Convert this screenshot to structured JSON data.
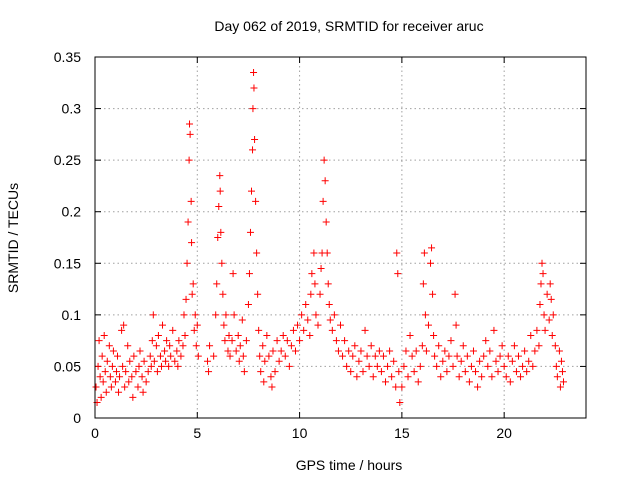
{
  "chart_data": {
    "type": "scatter",
    "title": "Day 062 of 2019, SRMTID for receiver aruc",
    "xlabel": "GPS time / hours",
    "ylabel": "SRMTID / TECUs",
    "xlim": [
      0,
      24
    ],
    "ylim": [
      0,
      0.35
    ],
    "xticks": [
      0,
      5,
      10,
      15,
      20
    ],
    "xtick_labels": [
      "0",
      "5",
      "10",
      "15",
      "20"
    ],
    "yticks": [
      0,
      0.05,
      0.1,
      0.15,
      0.2,
      0.25,
      0.3,
      0.35
    ],
    "ytick_labels": [
      "0",
      "0.05",
      "0.1",
      "0.15",
      "0.2",
      "0.25",
      "0.3",
      "0.35"
    ],
    "grid": true,
    "marker": "+",
    "color": "#ff0000",
    "series": [
      {
        "name": "SRMTID",
        "points": [
          [
            0.05,
            0.03
          ],
          [
            0.1,
            0.015
          ],
          [
            0.15,
            0.05
          ],
          [
            0.2,
            0.075
          ],
          [
            0.25,
            0.04
          ],
          [
            0.3,
            0.02
          ],
          [
            0.35,
            0.06
          ],
          [
            0.4,
            0.035
          ],
          [
            0.45,
            0.08
          ],
          [
            0.5,
            0.045
          ],
          [
            0.55,
            0.025
          ],
          [
            0.6,
            0.055
          ],
          [
            0.7,
            0.07
          ],
          [
            0.75,
            0.04
          ],
          [
            0.8,
            0.03
          ],
          [
            0.85,
            0.05
          ],
          [
            0.9,
            0.065
          ],
          [
            1.0,
            0.035
          ],
          [
            1.05,
            0.045
          ],
          [
            1.1,
            0.06
          ],
          [
            1.15,
            0.025
          ],
          [
            1.2,
            0.04
          ],
          [
            1.3,
            0.085
          ],
          [
            1.35,
            0.05
          ],
          [
            1.4,
            0.09
          ],
          [
            1.45,
            0.03
          ],
          [
            1.5,
            0.045
          ],
          [
            1.6,
            0.07
          ],
          [
            1.65,
            0.035
          ],
          [
            1.7,
            0.055
          ],
          [
            1.8,
            0.04
          ],
          [
            1.85,
            0.02
          ],
          [
            1.9,
            0.06
          ],
          [
            2.0,
            0.045
          ],
          [
            2.1,
            0.03
          ],
          [
            2.15,
            0.05
          ],
          [
            2.2,
            0.065
          ],
          [
            2.3,
            0.04
          ],
          [
            2.35,
            0.025
          ],
          [
            2.4,
            0.055
          ],
          [
            2.5,
            0.035
          ],
          [
            2.6,
            0.045
          ],
          [
            2.7,
            0.06
          ],
          [
            2.75,
            0.05
          ],
          [
            2.8,
            0.075
          ],
          [
            2.85,
            0.1
          ],
          [
            2.9,
            0.055
          ],
          [
            3.0,
            0.07
          ],
          [
            3.05,
            0.045
          ],
          [
            3.1,
            0.08
          ],
          [
            3.2,
            0.06
          ],
          [
            3.25,
            0.05
          ],
          [
            3.3,
            0.09
          ],
          [
            3.4,
            0.065
          ],
          [
            3.45,
            0.055
          ],
          [
            3.5,
            0.075
          ],
          [
            3.6,
            0.05
          ],
          [
            3.65,
            0.07
          ],
          [
            3.7,
            0.06
          ],
          [
            3.8,
            0.085
          ],
          [
            3.9,
            0.055
          ],
          [
            4.0,
            0.065
          ],
          [
            4.05,
            0.05
          ],
          [
            4.1,
            0.075
          ],
          [
            4.2,
            0.06
          ],
          [
            4.3,
            0.07
          ],
          [
            4.35,
            0.1
          ],
          [
            4.4,
            0.08
          ],
          [
            4.45,
            0.115
          ],
          [
            4.5,
            0.15
          ],
          [
            4.55,
            0.19
          ],
          [
            4.6,
            0.25
          ],
          [
            4.62,
            0.285
          ],
          [
            4.65,
            0.275
          ],
          [
            4.7,
            0.21
          ],
          [
            4.72,
            0.17
          ],
          [
            4.75,
            0.12
          ],
          [
            4.8,
            0.13
          ],
          [
            4.85,
            0.085
          ],
          [
            4.9,
            0.1
          ],
          [
            4.95,
            0.07
          ],
          [
            5.0,
            0.09
          ],
          [
            5.05,
            0.06
          ],
          [
            5.5,
            0.055
          ],
          [
            5.55,
            0.045
          ],
          [
            5.6,
            0.07
          ],
          [
            5.8,
            0.06
          ],
          [
            5.9,
            0.1
          ],
          [
            5.95,
            0.13
          ],
          [
            6.0,
            0.175
          ],
          [
            6.05,
            0.205
          ],
          [
            6.1,
            0.235
          ],
          [
            6.12,
            0.22
          ],
          [
            6.15,
            0.18
          ],
          [
            6.2,
            0.15
          ],
          [
            6.25,
            0.12
          ],
          [
            6.3,
            0.09
          ],
          [
            6.35,
            0.075
          ],
          [
            6.4,
            0.1
          ],
          [
            6.5,
            0.065
          ],
          [
            6.55,
            0.08
          ],
          [
            6.6,
            0.06
          ],
          [
            6.7,
            0.075
          ],
          [
            6.75,
            0.14
          ],
          [
            6.8,
            0.1
          ],
          [
            6.9,
            0.065
          ],
          [
            7.0,
            0.08
          ],
          [
            7.05,
            0.055
          ],
          [
            7.1,
            0.07
          ],
          [
            7.2,
            0.095
          ],
          [
            7.25,
            0.06
          ],
          [
            7.3,
            0.045
          ],
          [
            7.4,
            0.075
          ],
          [
            7.5,
            0.11
          ],
          [
            7.55,
            0.14
          ],
          [
            7.6,
            0.18
          ],
          [
            7.65,
            0.22
          ],
          [
            7.7,
            0.26
          ],
          [
            7.72,
            0.3
          ],
          [
            7.75,
            0.335
          ],
          [
            7.77,
            0.32
          ],
          [
            7.8,
            0.27
          ],
          [
            7.85,
            0.21
          ],
          [
            7.9,
            0.16
          ],
          [
            7.95,
            0.12
          ],
          [
            8.0,
            0.085
          ],
          [
            8.05,
            0.06
          ],
          [
            8.1,
            0.045
          ],
          [
            8.2,
            0.07
          ],
          [
            8.25,
            0.035
          ],
          [
            8.3,
            0.055
          ],
          [
            8.4,
            0.08
          ],
          [
            8.5,
            0.06
          ],
          [
            8.6,
            0.04
          ],
          [
            8.65,
            0.03
          ],
          [
            8.7,
            0.065
          ],
          [
            8.8,
            0.045
          ],
          [
            8.9,
            0.075
          ],
          [
            9.0,
            0.055
          ],
          [
            9.1,
            0.065
          ],
          [
            9.2,
            0.08
          ],
          [
            9.3,
            0.06
          ],
          [
            9.4,
            0.075
          ],
          [
            9.5,
            0.05
          ],
          [
            9.6,
            0.07
          ],
          [
            9.7,
            0.085
          ],
          [
            9.8,
            0.065
          ],
          [
            9.9,
            0.09
          ],
          [
            10.0,
            0.075
          ],
          [
            10.1,
            0.1
          ],
          [
            10.2,
            0.085
          ],
          [
            10.3,
            0.11
          ],
          [
            10.4,
            0.095
          ],
          [
            10.5,
            0.08
          ],
          [
            10.55,
            0.12
          ],
          [
            10.6,
            0.14
          ],
          [
            10.7,
            0.16
          ],
          [
            10.75,
            0.13
          ],
          [
            10.8,
            0.1
          ],
          [
            10.9,
            0.09
          ],
          [
            11.0,
            0.12
          ],
          [
            11.05,
            0.145
          ],
          [
            11.1,
            0.16
          ],
          [
            11.15,
            0.21
          ],
          [
            11.2,
            0.25
          ],
          [
            11.25,
            0.23
          ],
          [
            11.3,
            0.19
          ],
          [
            11.35,
            0.16
          ],
          [
            11.4,
            0.13
          ],
          [
            11.45,
            0.11
          ],
          [
            11.5,
            0.095
          ],
          [
            11.6,
            0.085
          ],
          [
            11.7,
            0.1
          ],
          [
            11.8,
            0.075
          ],
          [
            11.9,
            0.065
          ],
          [
            12.0,
            0.09
          ],
          [
            12.1,
            0.06
          ],
          [
            12.2,
            0.075
          ],
          [
            12.3,
            0.05
          ],
          [
            12.4,
            0.065
          ],
          [
            12.5,
            0.045
          ],
          [
            12.6,
            0.06
          ],
          [
            12.7,
            0.07
          ],
          [
            12.8,
            0.04
          ],
          [
            12.9,
            0.055
          ],
          [
            13.0,
            0.065
          ],
          [
            13.1,
            0.045
          ],
          [
            13.2,
            0.085
          ],
          [
            13.3,
            0.06
          ],
          [
            13.4,
            0.05
          ],
          [
            13.5,
            0.07
          ],
          [
            13.6,
            0.04
          ],
          [
            13.7,
            0.06
          ],
          [
            13.8,
            0.05
          ],
          [
            13.9,
            0.065
          ],
          [
            14.0,
            0.045
          ],
          [
            14.1,
            0.06
          ],
          [
            14.2,
            0.035
          ],
          [
            14.3,
            0.05
          ],
          [
            14.4,
            0.065
          ],
          [
            14.5,
            0.04
          ],
          [
            14.6,
            0.055
          ],
          [
            14.7,
            0.03
          ],
          [
            14.75,
            0.16
          ],
          [
            14.8,
            0.14
          ],
          [
            14.85,
            0.045
          ],
          [
            14.9,
            0.015
          ],
          [
            15.0,
            0.03
          ],
          [
            15.1,
            0.05
          ],
          [
            15.2,
            0.065
          ],
          [
            15.3,
            0.04
          ],
          [
            15.4,
            0.08
          ],
          [
            15.5,
            0.06
          ],
          [
            15.6,
            0.045
          ],
          [
            15.7,
            0.065
          ],
          [
            15.8,
            0.035
          ],
          [
            15.9,
            0.05
          ],
          [
            16.0,
            0.07
          ],
          [
            16.05,
            0.13
          ],
          [
            16.1,
            0.16
          ],
          [
            16.15,
            0.1
          ],
          [
            16.2,
            0.065
          ],
          [
            16.3,
            0.09
          ],
          [
            16.4,
            0.15
          ],
          [
            16.45,
            0.165
          ],
          [
            16.5,
            0.12
          ],
          [
            16.55,
            0.08
          ],
          [
            16.6,
            0.06
          ],
          [
            16.7,
            0.05
          ],
          [
            16.8,
            0.07
          ],
          [
            16.9,
            0.04
          ],
          [
            17.0,
            0.055
          ],
          [
            17.1,
            0.065
          ],
          [
            17.2,
            0.045
          ],
          [
            17.3,
            0.06
          ],
          [
            17.4,
            0.075
          ],
          [
            17.5,
            0.05
          ],
          [
            17.6,
            0.12
          ],
          [
            17.65,
            0.09
          ],
          [
            17.7,
            0.06
          ],
          [
            17.8,
            0.04
          ],
          [
            17.9,
            0.055
          ],
          [
            18.0,
            0.07
          ],
          [
            18.1,
            0.045
          ],
          [
            18.2,
            0.06
          ],
          [
            18.3,
            0.035
          ],
          [
            18.4,
            0.05
          ],
          [
            18.5,
            0.065
          ],
          [
            18.6,
            0.045
          ],
          [
            18.7,
            0.03
          ],
          [
            18.8,
            0.055
          ],
          [
            18.9,
            0.04
          ],
          [
            19.0,
            0.06
          ],
          [
            19.1,
            0.075
          ],
          [
            19.2,
            0.05
          ],
          [
            19.3,
            0.065
          ],
          [
            19.4,
            0.04
          ],
          [
            19.5,
            0.085
          ],
          [
            19.6,
            0.055
          ],
          [
            19.7,
            0.045
          ],
          [
            19.8,
            0.06
          ],
          [
            19.9,
            0.07
          ],
          [
            20.0,
            0.05
          ],
          [
            20.1,
            0.04
          ],
          [
            20.2,
            0.06
          ],
          [
            20.3,
            0.035
          ],
          [
            20.4,
            0.055
          ],
          [
            20.5,
            0.07
          ],
          [
            20.6,
            0.045
          ],
          [
            20.7,
            0.06
          ],
          [
            20.8,
            0.04
          ],
          [
            20.9,
            0.05
          ],
          [
            21.0,
            0.065
          ],
          [
            21.1,
            0.045
          ],
          [
            21.2,
            0.055
          ],
          [
            21.3,
            0.08
          ],
          [
            21.4,
            0.05
          ],
          [
            21.5,
            0.065
          ],
          [
            21.6,
            0.085
          ],
          [
            21.7,
            0.07
          ],
          [
            21.75,
            0.11
          ],
          [
            21.8,
            0.13
          ],
          [
            21.85,
            0.15
          ],
          [
            21.9,
            0.14
          ],
          [
            21.95,
            0.1
          ],
          [
            22.0,
            0.085
          ],
          [
            22.1,
            0.12
          ],
          [
            22.2,
            0.095
          ],
          [
            22.25,
            0.13
          ],
          [
            22.3,
            0.115
          ],
          [
            22.35,
            0.08
          ],
          [
            22.4,
            0.1
          ],
          [
            22.5,
            0.07
          ],
          [
            22.55,
            0.05
          ],
          [
            22.6,
            0.04
          ],
          [
            22.7,
            0.065
          ],
          [
            22.75,
            0.03
          ],
          [
            22.8,
            0.055
          ],
          [
            22.85,
            0.045
          ],
          [
            22.9,
            0.035
          ]
        ]
      }
    ]
  }
}
